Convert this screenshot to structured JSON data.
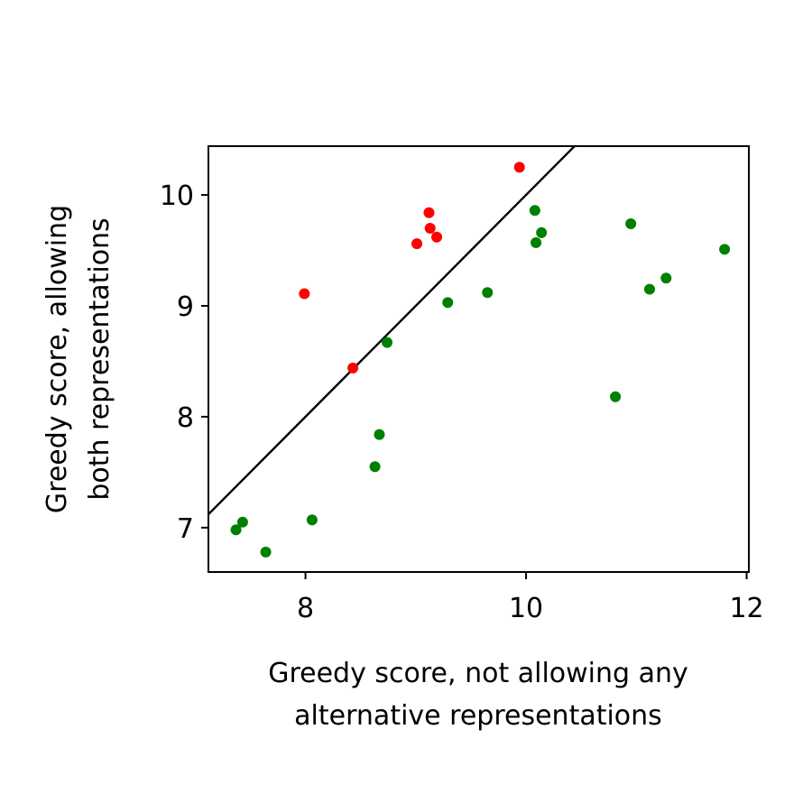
{
  "chart_data": {
    "type": "scatter",
    "xlabel": [
      "Greedy score, not allowing any",
      "alternative representations"
    ],
    "ylabel": [
      "Greedy score, allowing",
      "both representations"
    ],
    "xlim": [
      7.12,
      12.02
    ],
    "ylim": [
      6.6,
      10.44
    ],
    "xticks": [
      8,
      10,
      12
    ],
    "yticks": [
      7,
      8,
      9,
      10
    ],
    "grid": false,
    "reference_line": {
      "type": "y=x",
      "color": "#000000"
    },
    "series": [
      {
        "color": "#ff0000",
        "points": [
          {
            "x": 7.99,
            "y": 9.11
          },
          {
            "x": 8.43,
            "y": 8.44
          },
          {
            "x": 9.01,
            "y": 9.56
          },
          {
            "x": 9.12,
            "y": 9.84
          },
          {
            "x": 9.13,
            "y": 9.7
          },
          {
            "x": 9.19,
            "y": 9.62
          },
          {
            "x": 9.94,
            "y": 10.25
          }
        ]
      },
      {
        "color": "#008000",
        "points": [
          {
            "x": 7.37,
            "y": 6.98
          },
          {
            "x": 7.43,
            "y": 7.05
          },
          {
            "x": 7.64,
            "y": 6.78
          },
          {
            "x": 8.06,
            "y": 7.07
          },
          {
            "x": 8.63,
            "y": 7.55
          },
          {
            "x": 8.67,
            "y": 7.84
          },
          {
            "x": 8.74,
            "y": 8.67
          },
          {
            "x": 9.29,
            "y": 9.03
          },
          {
            "x": 9.65,
            "y": 9.12
          },
          {
            "x": 10.08,
            "y": 9.86
          },
          {
            "x": 10.09,
            "y": 9.57
          },
          {
            "x": 10.14,
            "y": 9.66
          },
          {
            "x": 10.81,
            "y": 8.18
          },
          {
            "x": 10.95,
            "y": 9.74
          },
          {
            "x": 11.12,
            "y": 9.15
          },
          {
            "x": 11.27,
            "y": 9.25
          },
          {
            "x": 11.8,
            "y": 9.51
          }
        ]
      }
    ]
  }
}
